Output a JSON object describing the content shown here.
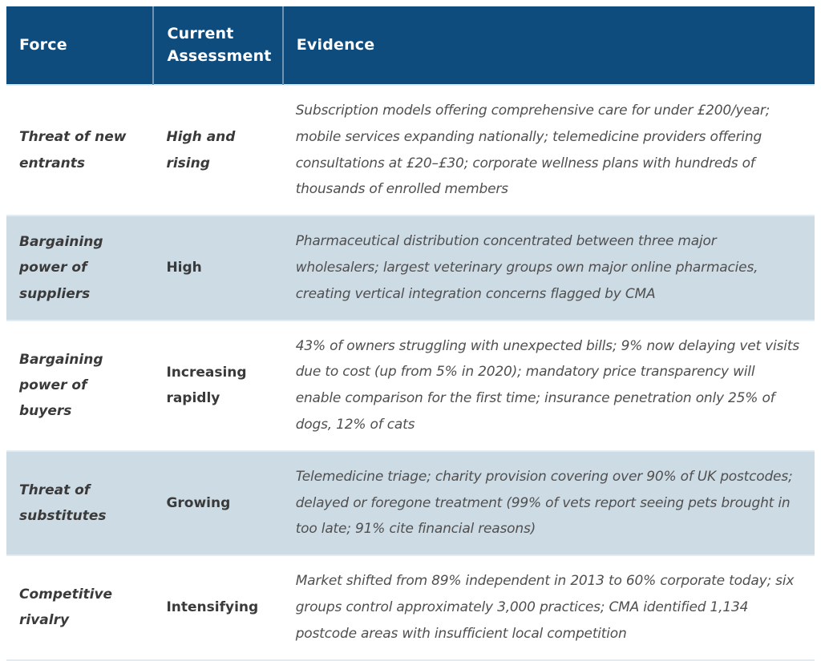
{
  "colors": {
    "header_bg": "#0f4c7e",
    "header_text": "#ffffff",
    "row_alt_bg": "#cddbe5",
    "row_bg": "#ffffff",
    "row_divider": "#e3ebf2",
    "force_text": "#3a3a3a",
    "evidence_text": "#4f4f4f"
  },
  "header": {
    "force": "Force",
    "assessment": "Current Assessment",
    "evidence": "Evidence"
  },
  "rows": [
    {
      "force": "Threat of new entrants",
      "assessment": "High and rising",
      "evidence": "Subscription models offering comprehensive care for under £200/year; mobile services expanding nationally; telemedicine providers offering consultations at £20–£30; corporate wellness plans with hundreds of thousands of enrolled members"
    },
    {
      "force": "Bargaining power of suppliers",
      "assessment": "High",
      "evidence": "Pharmaceutical distribution concentrated between three major wholesalers; largest veterinary groups own major online pharmacies, creating vertical integration concerns flagged by CMA"
    },
    {
      "force": "Bargaining power of buyers",
      "assessment": "Increasing rapidly",
      "evidence": "43% of owners struggling with unexpected bills; 9% now delaying vet visits due to cost (up from 5% in 2020); mandatory price transparency will enable comparison for the first time; insurance penetration only 25% of dogs, 12% of cats"
    },
    {
      "force": "Threat of substitutes",
      "assessment": "Growing",
      "evidence": "Telemedicine triage; charity provision covering over 90% of UK postcodes; delayed or foregone treatment (99% of vets report seeing pets brought in too late; 91% cite financial reasons)"
    },
    {
      "force": "Competitive rivalry",
      "assessment": "Intensifying",
      "evidence": "Market shifted from 89% independent in 2013 to 60% corporate today; six groups control approximately 3,000 practices; CMA identified 1,134 postcode areas with insufficient local competition"
    }
  ]
}
